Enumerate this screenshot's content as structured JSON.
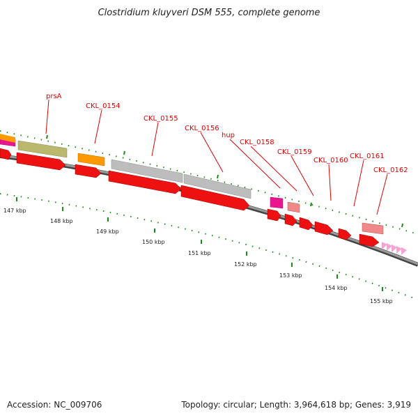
{
  "title": "Clostridium kluyveri DSM 555, complete genome",
  "accession": "Accession: NC_009706",
  "topology": "Topology: circular; Length: 3,964,618 bp; Genes: 3,919",
  "colors": {
    "backbone": "#7a7a7a",
    "tick": "#1d8a1d",
    "gene_label": "#dd0000",
    "cds_red": "#ee1111",
    "grey_feature": "#bdbdbd",
    "olive_feature": "#b9b86e",
    "orange_feature": "#ff9900",
    "magenta_feature": "#e8168f",
    "pink_feature": "#f08a8a",
    "repeat_pink": "#f5a3d3"
  },
  "scale_labels": [
    "147 kbp",
    "148 kbp",
    "149 kbp",
    "150 kbp",
    "151 kbp",
    "152 kbp",
    "153 kbp",
    "154 kbp",
    "155 kbp"
  ],
  "gene_labels": [
    "prsA",
    "CKL_0154",
    "CKL_0155",
    "CKL_0156",
    "hup",
    "CKL_0158",
    "CKL_0159",
    "CKL_0160",
    "CKL_0161",
    "CKL_0162"
  ]
}
